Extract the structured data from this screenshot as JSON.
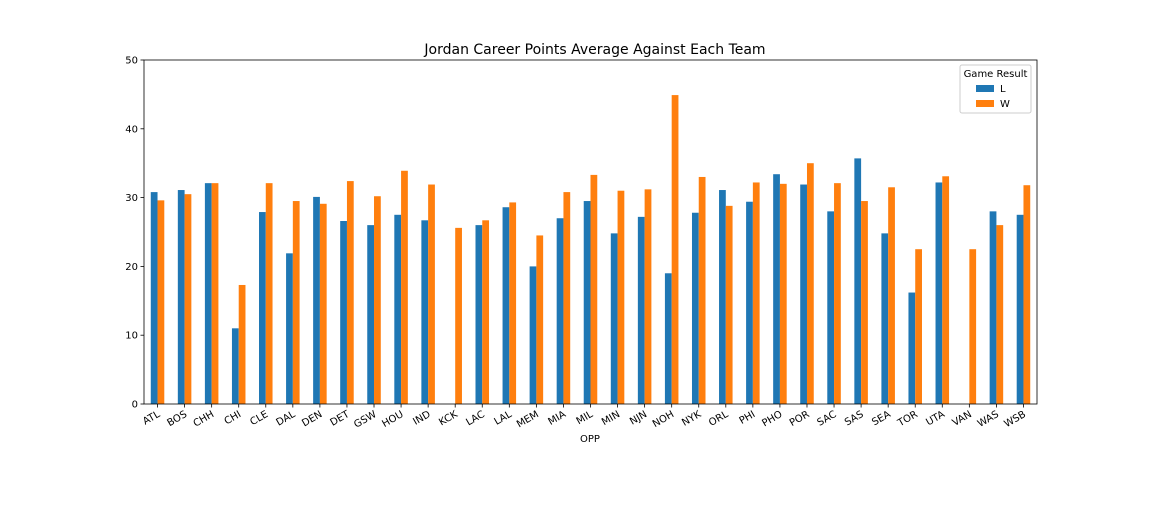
{
  "chart_data": {
    "type": "bar",
    "title": "Jordan Career Points Average Against Each Team",
    "xlabel": "OPP",
    "ylabel": "",
    "ylim": [
      0,
      50
    ],
    "yticks": [
      "0",
      "10",
      "20",
      "30",
      "40",
      "50"
    ],
    "categories": [
      "ATL",
      "BOS",
      "CHH",
      "CHI",
      "CLE",
      "DAL",
      "DEN",
      "DET",
      "GSW",
      "HOU",
      "IND",
      "KCK",
      "LAC",
      "LAL",
      "MEM",
      "MIA",
      "MIL",
      "MIN",
      "NJN",
      "NOH",
      "NYK",
      "ORL",
      "PHI",
      "PHO",
      "POR",
      "SAC",
      "SAS",
      "SEA",
      "TOR",
      "UTA",
      "VAN",
      "WAS",
      "WSB"
    ],
    "legend": {
      "title": "Game Result",
      "position": "top-right"
    },
    "series": [
      {
        "name": "L",
        "color": "#1f77b4",
        "values": [
          30.8,
          31.1,
          32.1,
          11.0,
          27.9,
          21.9,
          30.1,
          26.6,
          26.0,
          27.5,
          26.7,
          null,
          26.0,
          28.6,
          20.0,
          27.0,
          29.5,
          24.8,
          27.2,
          19.0,
          27.8,
          31.1,
          29.4,
          33.4,
          31.9,
          28.0,
          35.7,
          24.8,
          16.2,
          32.2,
          null,
          28.0,
          27.5
        ]
      },
      {
        "name": "W",
        "color": "#ff7f0e",
        "values": [
          29.6,
          30.5,
          32.1,
          17.3,
          32.1,
          29.5,
          29.1,
          32.4,
          30.2,
          33.9,
          31.9,
          25.6,
          26.7,
          29.3,
          24.5,
          30.8,
          33.3,
          31.0,
          31.2,
          44.9,
          33.0,
          28.8,
          32.2,
          32.0,
          35.0,
          32.1,
          29.5,
          31.5,
          22.5,
          33.1,
          22.5,
          26.0,
          31.8
        ]
      }
    ]
  }
}
